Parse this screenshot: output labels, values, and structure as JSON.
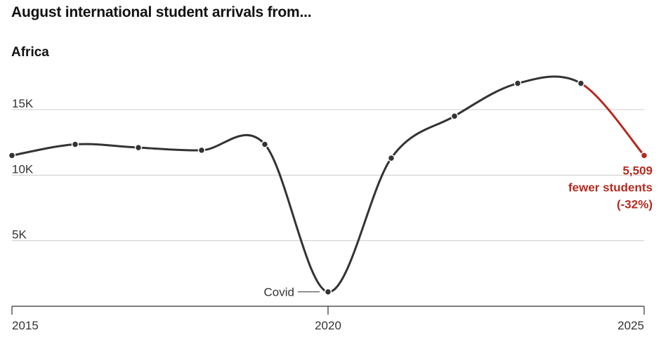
{
  "chart_data": {
    "type": "line",
    "title": "August international student arrivals from...",
    "subtitle": "Africa",
    "x": [
      2015,
      2016,
      2017,
      2018,
      2019,
      2020,
      2021,
      2022,
      2023,
      2024,
      2025
    ],
    "series": [
      {
        "values": [
          11500,
          12350,
          12100,
          11900,
          12350,
          1100,
          11300,
          14500,
          17000,
          17000,
          11500
        ]
      }
    ],
    "ylim": [
      0,
      18000
    ],
    "xlim": [
      2015,
      2025
    ],
    "y_ticks": [
      {
        "value": 5000,
        "label": "5K"
      },
      {
        "value": 10000,
        "label": "10K"
      },
      {
        "value": 15000,
        "label": "15K"
      }
    ],
    "x_ticks": [
      {
        "value": 2015,
        "label": "2015"
      },
      {
        "value": 2020,
        "label": "2020"
      },
      {
        "value": 2025,
        "label": "2025"
      }
    ],
    "grid": true,
    "annotations": [
      {
        "x": 2020,
        "text": "Covid"
      }
    ],
    "change_label": [
      "5,509",
      "fewer students",
      "(-32%)"
    ],
    "colors": {
      "line": "#333333",
      "highlight": "#b52a1f",
      "grid": "#cccccc",
      "axis": "#333333"
    }
  }
}
